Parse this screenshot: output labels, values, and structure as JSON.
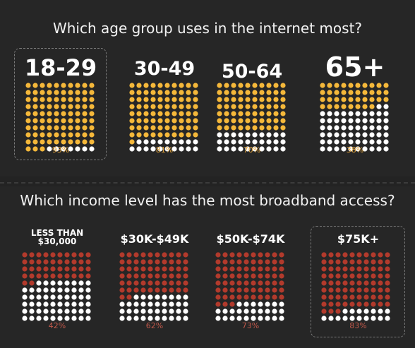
{
  "chart_data": [
    {
      "type": "bar",
      "title": "Which age group uses in the internet most?",
      "categories": [
        "18-29",
        "30-49",
        "50-64",
        "65+"
      ],
      "values": [
        93,
        81,
        70,
        38
      ],
      "value_labels": [
        "93%",
        "81%",
        "70%",
        "38%"
      ],
      "highlighted_category": "18-29",
      "filled_color": "#f5b83a",
      "empty_color": "#ffffff",
      "label_color": "#e0a23a"
    },
    {
      "type": "bar",
      "title": "Which income level has the most broadband access?",
      "categories": [
        "LESS THAN\n$30,000",
        "$30K-$49K",
        "$50K-$74K",
        "$75K+"
      ],
      "values": [
        42,
        62,
        73,
        83
      ],
      "value_labels": [
        "42%",
        "62%",
        "73%",
        "83%"
      ],
      "highlighted_category": "$75K+",
      "filled_color": "#b23a2c",
      "empty_color": "#ffffff",
      "label_color": "#c0584a"
    }
  ],
  "colors": {
    "background": "#232323",
    "title_text": "#f2f2f2",
    "highlight_border": "#7a7a7a"
  }
}
